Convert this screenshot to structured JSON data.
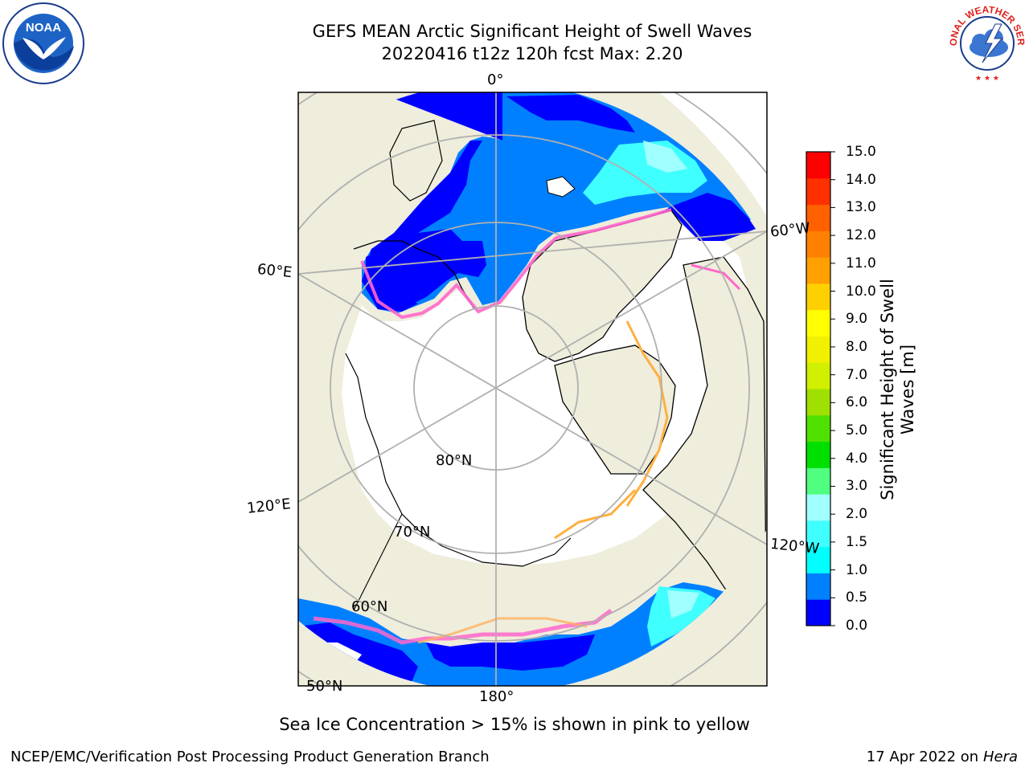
{
  "title": {
    "line1": "GEFS MEAN Arctic Significant Height of Swell Waves",
    "line2": "20220416 t12z 120h fcst   Max: 2.20"
  },
  "logos": {
    "left": "NOAA",
    "right": "NATIONAL WEATHER SERVICE"
  },
  "map": {
    "projection": "north-polar-stereographic",
    "lon_labels": [
      "0°",
      "60°W",
      "120°W",
      "180°",
      "120°E",
      "60°E"
    ],
    "lat_labels": [
      "80°N",
      "70°N",
      "60°N",
      "50°N"
    ],
    "colors": {
      "land": "#efeddc",
      "ice": "#ffffff",
      "grid": "#b0b0b0",
      "coast": "#000000",
      "ice_edge": "#ff66cc"
    }
  },
  "colorbar": {
    "label": "Significant Height of Swell Waves [m]",
    "ticks": [
      "15.0",
      "14.0",
      "13.0",
      "12.0",
      "11.0",
      "10.0",
      "9.0",
      "8.0",
      "7.0",
      "6.0",
      "5.0",
      "4.0",
      "3.0",
      "2.0",
      "1.5",
      "1.0",
      "0.5",
      "0.0"
    ],
    "colors": [
      "#0000ff",
      "#0080ff",
      "#00ffff",
      "#40ffff",
      "#a0ffff",
      "#50ff80",
      "#00e000",
      "#50e000",
      "#a0e000",
      "#d0f000",
      "#f0f000",
      "#ffff00",
      "#ffd000",
      "#ffa000",
      "#ff8000",
      "#ff6000",
      "#ff3000",
      "#ff0000"
    ]
  },
  "caption": "Sea Ice Concentration > 15% is shown in pink to yellow",
  "footer": {
    "left": "NCEP/EMC/Verification Post Processing Product Generation Branch",
    "date": "17 Apr 2022 on ",
    "host": "Hera"
  }
}
